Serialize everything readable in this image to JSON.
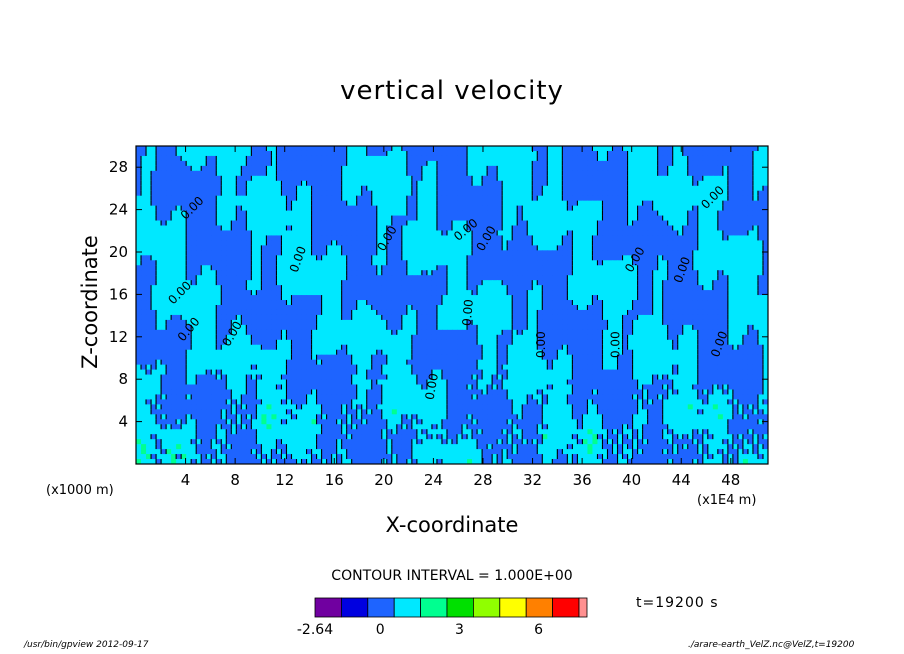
{
  "chart_data": {
    "type": "heatmap",
    "title": "vertical velocity",
    "xlabel": "X-coordinate",
    "ylabel": "Z-coordinate",
    "x_unit": "(x1E4 m)",
    "y_unit": "(x1000 m)",
    "xlim": [
      0,
      51
    ],
    "ylim": [
      0,
      30
    ],
    "x_ticks": [
      "4",
      "8",
      "12",
      "16",
      "20",
      "24",
      "28",
      "32",
      "36",
      "40",
      "44",
      "48"
    ],
    "y_ticks": [
      "4",
      "8",
      "12",
      "16",
      "20",
      "24",
      "28"
    ],
    "contour_label": "0.00",
    "contour_interval_text": "CONTOUR INTERVAL = 1.000E+00",
    "time_text": "t=19200 s",
    "colorbar": {
      "colors": [
        "#7000a0",
        "#0000e0",
        "#1e64ff",
        "#00e8ff",
        "#00ff90",
        "#00e000",
        "#90ff00",
        "#ffff00",
        "#ff8000",
        "#ff0000",
        "#ff9090"
      ],
      "tick_labels": [
        "-2.64",
        "0",
        "3",
        "6"
      ]
    }
  },
  "footer": {
    "left": "/usr/bin/gpview   2012-09-17",
    "right": "./arare-earth_VelZ.nc@VelZ,t=19200"
  }
}
